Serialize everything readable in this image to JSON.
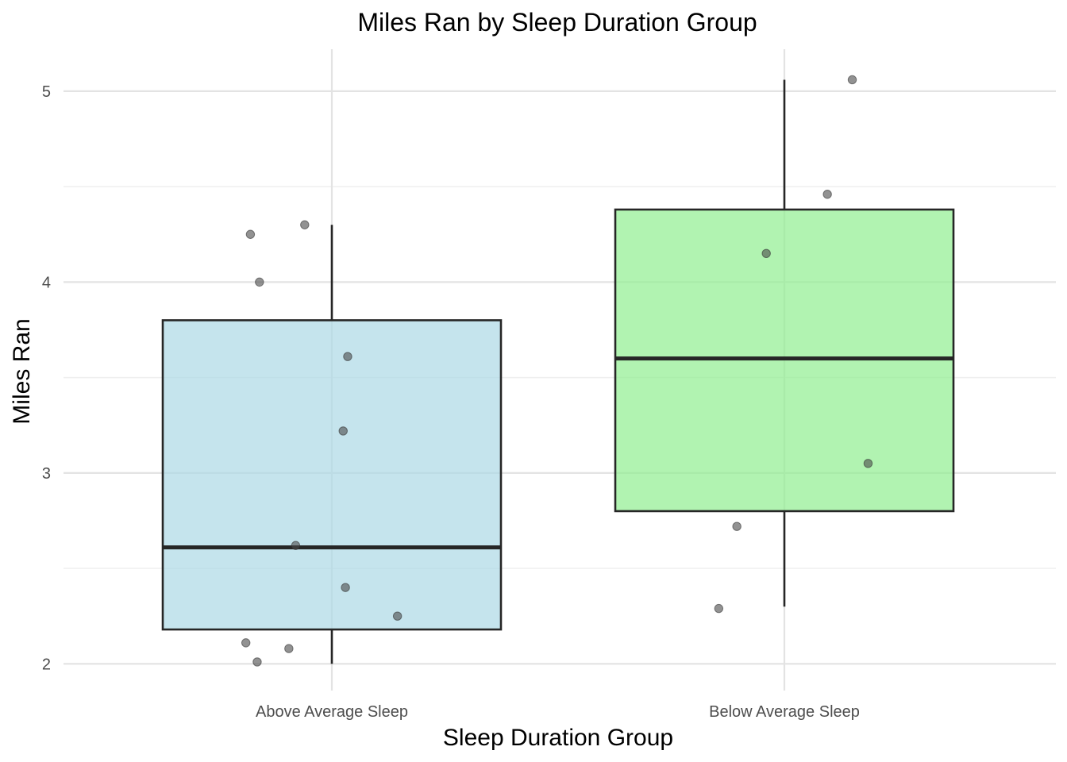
{
  "chart_data": {
    "type": "box",
    "title": "Miles Ran by Sleep Duration Group",
    "xlabel": "Sleep Duration Group",
    "ylabel": "Miles Ran",
    "categories": [
      "Above Average Sleep",
      "Below Average Sleep"
    ],
    "ylim": [
      1.86,
      5.22
    ],
    "yticks": [
      2,
      3,
      4,
      5
    ],
    "ytick_labels": [
      "2",
      "3",
      "4",
      "5"
    ],
    "grid": true,
    "legend": "none",
    "boxes": [
      {
        "name": "Above Average Sleep",
        "fill": "#add8e6",
        "whisker_low": 2.0,
        "q1": 2.18,
        "median": 2.61,
        "q3": 3.8,
        "whisker_high": 4.3,
        "points": [
          {
            "x": -0.18,
            "y": 4.25
          },
          {
            "x": -0.06,
            "y": 4.3
          },
          {
            "x": -0.16,
            "y": 4.0
          },
          {
            "x": 0.035,
            "y": 3.61
          },
          {
            "x": 0.025,
            "y": 3.22
          },
          {
            "x": -0.08,
            "y": 2.62
          },
          {
            "x": 0.03,
            "y": 2.4
          },
          {
            "x": 0.145,
            "y": 2.25
          },
          {
            "x": -0.19,
            "y": 2.11
          },
          {
            "x": -0.095,
            "y": 2.08
          },
          {
            "x": -0.165,
            "y": 2.01
          }
        ]
      },
      {
        "name": "Below Average Sleep",
        "fill": "#90ee90",
        "whisker_low": 2.3,
        "q1": 2.8,
        "median": 3.6,
        "q3": 4.38,
        "whisker_high": 5.06,
        "points": [
          {
            "x": 0.15,
            "y": 5.06
          },
          {
            "x": 0.095,
            "y": 4.46
          },
          {
            "x": -0.04,
            "y": 4.15
          },
          {
            "x": 0.185,
            "y": 3.05
          },
          {
            "x": -0.105,
            "y": 2.72
          },
          {
            "x": -0.145,
            "y": 2.29
          }
        ]
      }
    ]
  }
}
